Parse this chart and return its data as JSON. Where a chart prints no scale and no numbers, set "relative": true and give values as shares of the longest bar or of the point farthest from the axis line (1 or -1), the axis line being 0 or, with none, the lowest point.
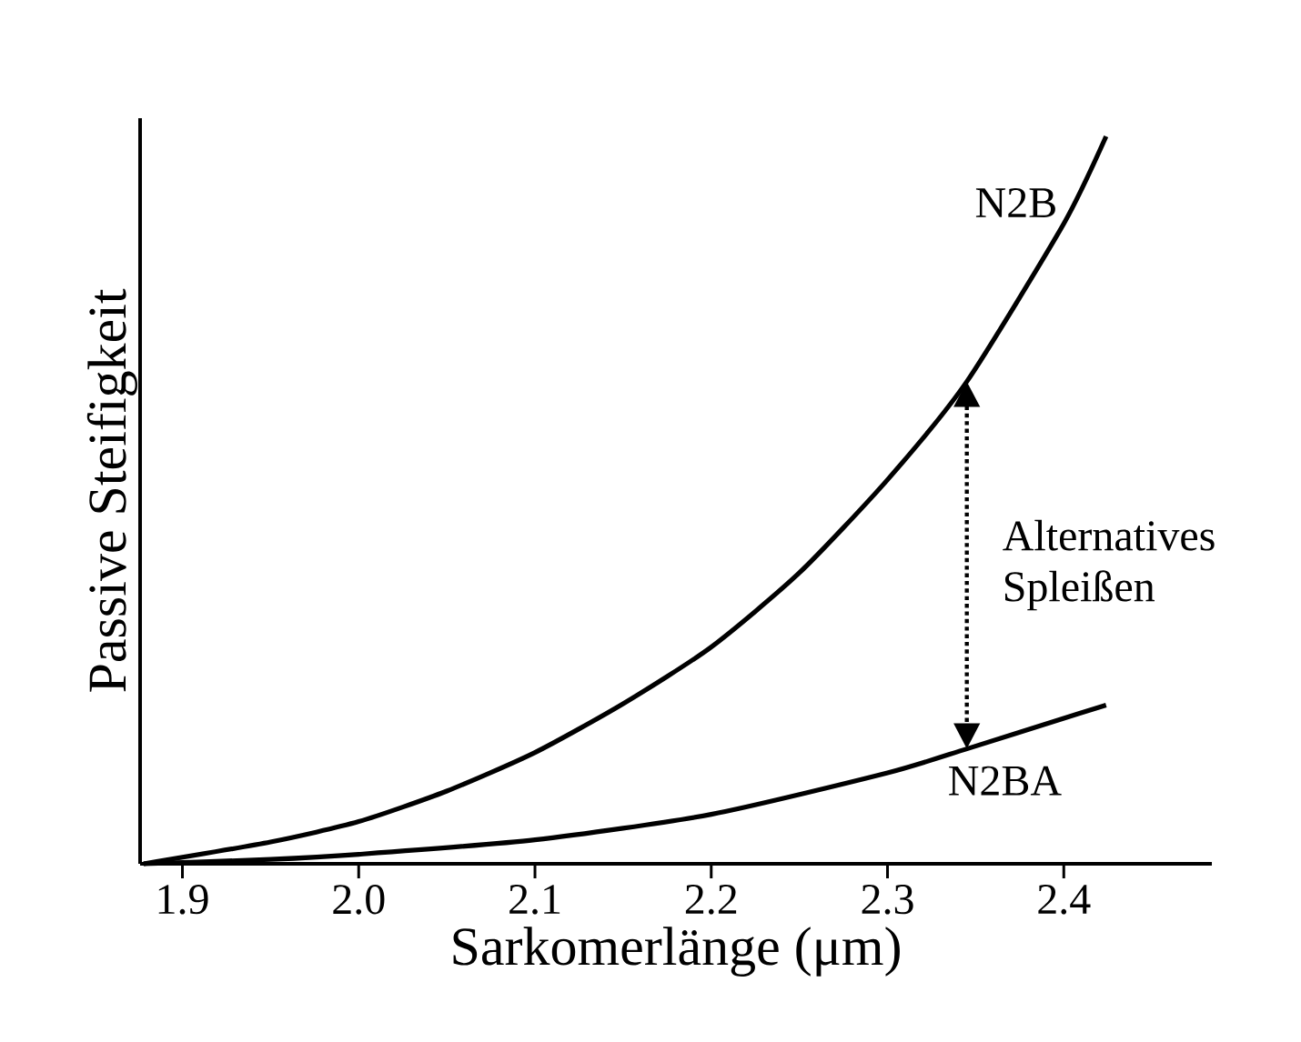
{
  "chart_data": {
    "type": "line",
    "xlabel": "Sarkomerlänge (μm)",
    "ylabel": "Passive Steifigkeit",
    "relative": true,
    "xlim": [
      1.876,
      2.484
    ],
    "xticks": [
      1.9,
      {
        "value": 2.0,
        "label": "2.0"
      },
      2.1,
      2.2,
      2.3,
      2.4
    ],
    "tick_labels": "x",
    "grid": false,
    "marker": "none",
    "line_style": "solid",
    "series": [
      {
        "name": "N2B",
        "color": "#000000",
        "x": [
          1.878,
          1.95,
          2.0,
          2.05,
          2.1,
          2.15,
          2.2,
          2.25,
          2.3,
          2.345,
          2.4,
          2.424
        ],
        "values": [
          0,
          0.03,
          0.058,
          0.1,
          0.153,
          0.22,
          0.298,
          0.4,
          0.528,
          0.663,
          0.88,
          1.0
        ]
      },
      {
        "name": "N2BA",
        "color": "#000000",
        "x": [
          1.878,
          1.95,
          2.0,
          2.1,
          2.2,
          2.3,
          2.345,
          2.4,
          2.424
        ],
        "values": [
          0,
          0.006,
          0.013,
          0.033,
          0.068,
          0.125,
          0.158,
          0.2,
          0.218
        ]
      }
    ],
    "annotations": [
      "Alternatives Spleißen"
    ]
  }
}
